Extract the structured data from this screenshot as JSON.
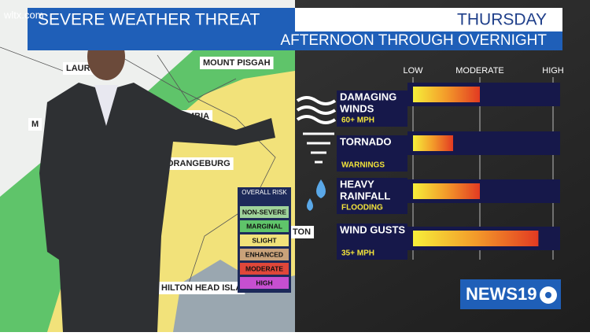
{
  "logo": "wltx.com",
  "header": {
    "title": "SEVERE WEATHER THREAT",
    "day": "THURSDAY",
    "subtitle": "AFTERNOON THROUGH OVERNIGHT"
  },
  "map": {
    "cities": [
      "MOUNT PISGAH",
      "LAUR",
      "UMBIA",
      "ORANGEBURG",
      "HILTON HEAD ISLA",
      "TON",
      "M"
    ],
    "legend": {
      "title": "OVERALL RISK",
      "items": [
        {
          "label": "NON-SEVERE",
          "color": "#9fd39a"
        },
        {
          "label": "MARGINAL",
          "color": "#5fc46a"
        },
        {
          "label": "SLIGHT",
          "color": "#f2e27a"
        },
        {
          "label": "ENHANCED",
          "color": "#c9a27a"
        },
        {
          "label": "MODERATE",
          "color": "#e0473a"
        },
        {
          "label": "HIGH",
          "color": "#c64fd1"
        }
      ]
    }
  },
  "scale": [
    {
      "value": 0,
      "label": "LOW"
    },
    {
      "value": 1,
      "label": "MODERATE"
    },
    {
      "value": 2,
      "label": "HIGH"
    }
  ],
  "threats": [
    {
      "name": [
        "DAMAGING",
        "WINDS"
      ],
      "detail": "60+ MPH",
      "level": 1.0
    },
    {
      "name": [
        "TORNADO"
      ],
      "detail": "WARNINGS",
      "level": 0.6
    },
    {
      "name": [
        "HEAVY",
        "RAINFALL"
      ],
      "detail": "FLOODING",
      "level": 1.0
    },
    {
      "name": [
        "WIND GUSTS"
      ],
      "detail": "35+ MPH",
      "level": 1.8
    }
  ],
  "brand": {
    "name": "NEWS19"
  }
}
